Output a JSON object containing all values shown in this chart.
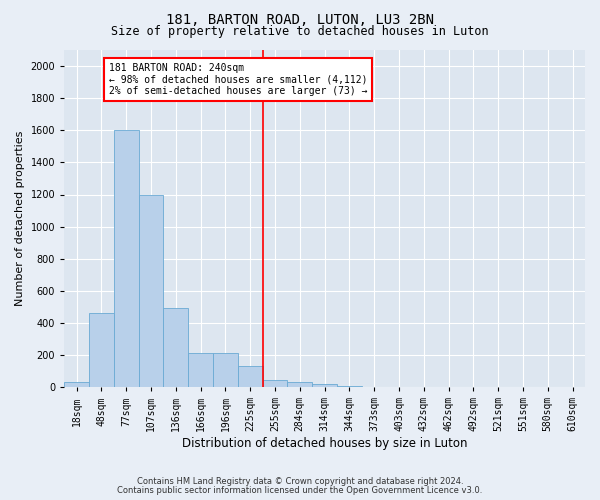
{
  "title": "181, BARTON ROAD, LUTON, LU3 2BN",
  "subtitle": "Size of property relative to detached houses in Luton",
  "xlabel": "Distribution of detached houses by size in Luton",
  "ylabel": "Number of detached properties",
  "footer_line1": "Contains HM Land Registry data © Crown copyright and database right 2024.",
  "footer_line2": "Contains public sector information licensed under the Open Government Licence v3.0.",
  "bar_color": "#b8d0ea",
  "bar_edge_color": "#6aaad4",
  "background_color": "#dde6f0",
  "grid_color": "#ffffff",
  "fig_background": "#e8eef6",
  "bin_labels": [
    "18sqm",
    "48sqm",
    "77sqm",
    "107sqm",
    "136sqm",
    "166sqm",
    "196sqm",
    "225sqm",
    "255sqm",
    "284sqm",
    "314sqm",
    "344sqm",
    "373sqm",
    "403sqm",
    "432sqm",
    "462sqm",
    "492sqm",
    "521sqm",
    "551sqm",
    "580sqm",
    "610sqm"
  ],
  "bar_values": [
    35,
    460,
    1600,
    1200,
    490,
    210,
    210,
    130,
    45,
    35,
    20,
    10,
    0,
    0,
    0,
    0,
    0,
    0,
    0,
    0,
    0
  ],
  "annotation_line1": "181 BARTON ROAD: 240sqm",
  "annotation_line2": "← 98% of detached houses are smaller (4,112)",
  "annotation_line3": "2% of semi-detached houses are larger (73) →",
  "vline_x": 7.5,
  "ylim": [
    0,
    2100
  ],
  "yticks": [
    0,
    200,
    400,
    600,
    800,
    1000,
    1200,
    1400,
    1600,
    1800,
    2000
  ],
  "bar_width": 1.0,
  "title_fontsize": 10,
  "subtitle_fontsize": 8.5,
  "ylabel_fontsize": 8,
  "xlabel_fontsize": 8.5,
  "tick_fontsize": 7,
  "annotation_fontsize": 7,
  "footer_fontsize": 6
}
